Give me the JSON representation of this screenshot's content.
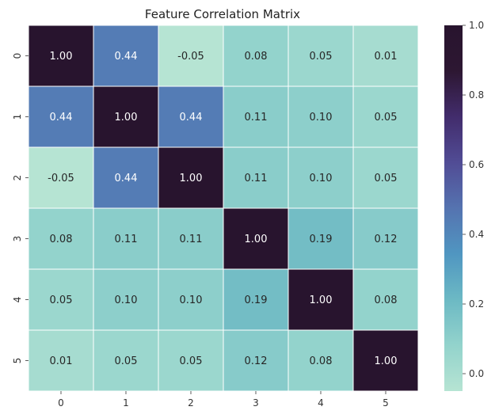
{
  "chart_data": {
    "type": "heatmap",
    "title": "Feature Correlation Matrix",
    "x_categories": [
      "0",
      "1",
      "2",
      "3",
      "4",
      "5"
    ],
    "y_categories": [
      "0",
      "1",
      "2",
      "3",
      "4",
      "5"
    ],
    "values": [
      [
        1.0,
        0.44,
        -0.05,
        0.08,
        0.05,
        0.01
      ],
      [
        0.44,
        1.0,
        0.44,
        0.11,
        0.1,
        0.05
      ],
      [
        -0.05,
        0.44,
        1.0,
        0.11,
        0.1,
        0.05
      ],
      [
        0.08,
        0.11,
        0.11,
        1.0,
        0.19,
        0.12
      ],
      [
        0.05,
        0.1,
        0.1,
        0.19,
        1.0,
        0.08
      ],
      [
        0.01,
        0.05,
        0.05,
        0.12,
        0.08,
        1.0
      ]
    ],
    "labels": [
      [
        "1.00",
        "0.44",
        "-0.05",
        "0.08",
        "0.05",
        "0.01"
      ],
      [
        "0.44",
        "1.00",
        "0.44",
        "0.11",
        "0.10",
        "0.05"
      ],
      [
        "-0.05",
        "0.44",
        "1.00",
        "0.11",
        "0.10",
        "0.05"
      ],
      [
        "0.08",
        "0.11",
        "0.11",
        "1.00",
        "0.19",
        "0.12"
      ],
      [
        "0.05",
        "0.10",
        "0.10",
        "0.19",
        "1.00",
        "0.08"
      ],
      [
        "0.01",
        "0.05",
        "0.05",
        "0.12",
        "0.08",
        "1.00"
      ]
    ],
    "colorbar": {
      "range": [
        -0.05,
        1.0
      ],
      "ticks": [
        0.0,
        0.2,
        0.4,
        0.6,
        0.8,
        1.0
      ],
      "tick_labels": [
        "0.0",
        "0.2",
        "0.4",
        "0.6",
        "0.8",
        "1.0"
      ]
    },
    "colormap_stops": [
      "#b6e4d3",
      "#93d3cc",
      "#6cb9c4",
      "#5096c1",
      "#5573b0",
      "#514c95",
      "#422c6c",
      "#2d1732",
      "#28142e"
    ],
    "cell_border_color": "#ffffff",
    "dark_text_color": "#262626",
    "light_text_color": "#ffffff"
  }
}
